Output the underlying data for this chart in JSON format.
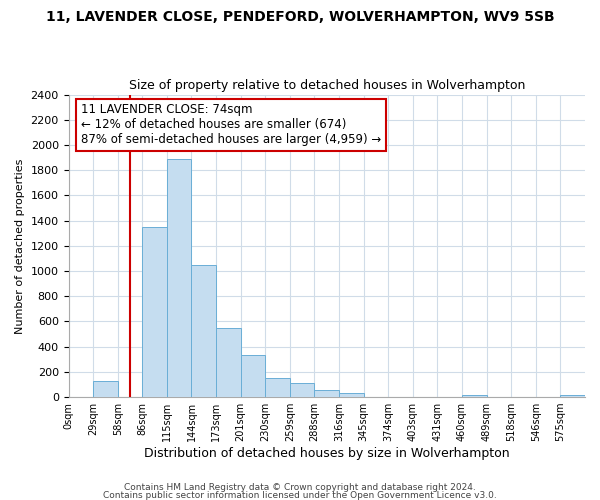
{
  "title_line1": "11, LAVENDER CLOSE, PENDEFORD, WOLVERHAMPTON, WV9 5SB",
  "title_line2": "Size of property relative to detached houses in Wolverhampton",
  "xlabel": "Distribution of detached houses by size in Wolverhampton",
  "ylabel": "Number of detached properties",
  "bin_labels": [
    "0sqm",
    "29sqm",
    "58sqm",
    "86sqm",
    "115sqm",
    "144sqm",
    "173sqm",
    "201sqm",
    "230sqm",
    "259sqm",
    "288sqm",
    "316sqm",
    "345sqm",
    "374sqm",
    "403sqm",
    "431sqm",
    "460sqm",
    "489sqm",
    "518sqm",
    "546sqm",
    "575sqm"
  ],
  "bar_values": [
    0,
    125,
    0,
    1350,
    1890,
    1050,
    550,
    335,
    155,
    110,
    60,
    30,
    0,
    0,
    0,
    0,
    15,
    0,
    0,
    0,
    15
  ],
  "bar_color": "#c5ddf0",
  "bar_edge_color": "#6aaed6",
  "annotation_title": "11 LAVENDER CLOSE: 74sqm",
  "annotation_line2": "← 12% of detached houses are smaller (674)",
  "annotation_line3": "87% of semi-detached houses are larger (4,959) →",
  "annotation_box_facecolor": "#ffffff",
  "annotation_box_edgecolor": "#cc0000",
  "vline_color": "#cc0000",
  "vline_x": 2.5,
  "ylim": [
    0,
    2400
  ],
  "yticks": [
    0,
    200,
    400,
    600,
    800,
    1000,
    1200,
    1400,
    1600,
    1800,
    2000,
    2200,
    2400
  ],
  "grid_color": "#d0dce8",
  "footer_line1": "Contains HM Land Registry data © Crown copyright and database right 2024.",
  "footer_line2": "Contains public sector information licensed under the Open Government Licence v3.0.",
  "bg_color": "#ffffff"
}
